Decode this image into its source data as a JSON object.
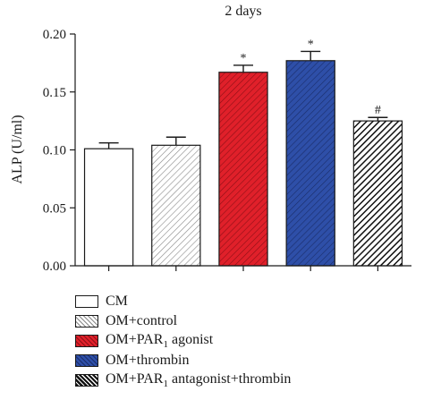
{
  "chart_data": {
    "type": "bar",
    "title": "2 days",
    "ylabel": "ALP (U/ml)",
    "xlabel": "",
    "ylim": [
      0,
      0.2
    ],
    "yticks": [
      "0.00",
      "0.05",
      "0.10",
      "0.15",
      "0.20"
    ],
    "grid": false,
    "legend_position": "bottom",
    "categories": [
      "CM",
      "OM+control",
      "OM+PAR1 agonist",
      "OM+thrombin",
      "OM+PAR1 antagonist+thrombin"
    ],
    "values": [
      0.101,
      0.104,
      0.167,
      0.177,
      0.125
    ],
    "errors": [
      0.005,
      0.007,
      0.006,
      0.008,
      0.003
    ],
    "annotations": [
      "",
      "",
      "*",
      "*",
      "#"
    ],
    "bar_styles": [
      {
        "fill": "#ffffff",
        "pattern": "none",
        "line": ""
      },
      {
        "fill": "#ffffff",
        "pattern": "hatch",
        "line": "#888888"
      },
      {
        "fill": "#e0202a",
        "pattern": "hatch",
        "line": "#8e0f16"
      },
      {
        "fill": "#2e4fa8",
        "pattern": "hatch",
        "line": "#1a2d6a"
      },
      {
        "fill": "#ffffff",
        "pattern": "hatch-dense",
        "line": "#111111"
      }
    ],
    "legend": [
      {
        "label": "CM"
      },
      {
        "label": "OM+control"
      },
      {
        "label": "OM+PAR",
        "sub": "1",
        "suffix": " agonist"
      },
      {
        "label": "OM+thrombin"
      },
      {
        "label": "OM+PAR",
        "sub": "1",
        "suffix": " antagonist+thrombin"
      }
    ]
  }
}
